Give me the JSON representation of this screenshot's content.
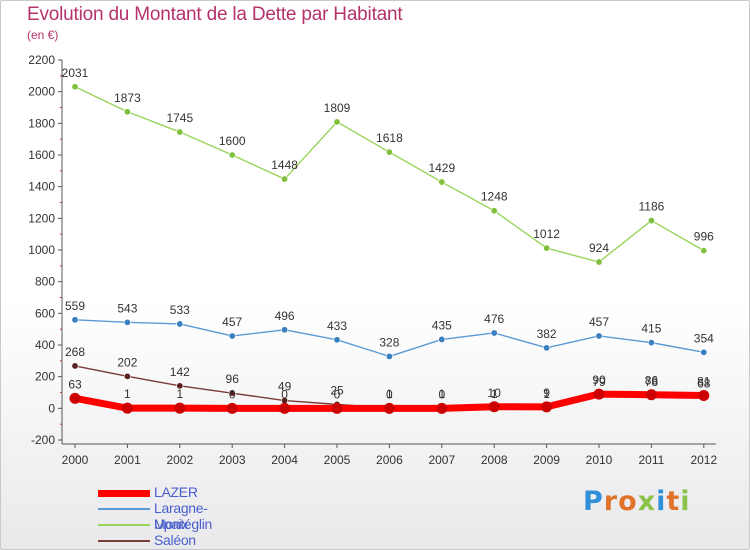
{
  "title": "Evolution du Montant de la Dette par Habitant",
  "subtitle": "(en €)",
  "brand": "Proxiti",
  "colors": {
    "title": "#b5326b",
    "axis": "#333333",
    "legend_text": "#4a5fcc",
    "lazer": "#ff0000",
    "laragne": "#5b9bd5",
    "upaix": "#99d45a",
    "saleon": "#7a3b3b"
  },
  "chart_data": {
    "type": "line",
    "title": "Evolution du Montant de la Dette par Habitant",
    "subtitle": "(en €)",
    "x": [
      "2000",
      "2001",
      "2002",
      "2003",
      "2004",
      "2005",
      "2006",
      "2007",
      "2008",
      "2009",
      "2010",
      "2011",
      "2012"
    ],
    "ylim": [
      -200,
      2200
    ],
    "yticks": [
      -200,
      0,
      200,
      400,
      600,
      800,
      1000,
      1200,
      1400,
      1600,
      1800,
      2000,
      2200
    ],
    "legend_position": "bottom-left",
    "grid": false,
    "series": [
      {
        "name": "LAZER",
        "key": "lazer",
        "color": "#ff0000",
        "marker": "#cc0000",
        "values": [
          63,
          1,
          1,
          0,
          0,
          0,
          0,
          0,
          10,
          9,
          90,
          86,
          81
        ],
        "labels": [
          "63",
          "1",
          "1",
          "0",
          "0",
          "0",
          "0",
          "0",
          "10",
          "9",
          "90",
          "86",
          "81"
        ]
      },
      {
        "name": "Laragne-Montéglin",
        "key": "laragne",
        "color": "#5b9bd5",
        "marker": "#3a7fc0",
        "values": [
          559,
          543,
          533,
          457,
          496,
          433,
          328,
          435,
          476,
          382,
          457,
          415,
          354
        ],
        "labels": [
          "559",
          "543",
          "533",
          "457",
          "496",
          "433",
          "328",
          "435",
          "476",
          "382",
          "457",
          "415",
          "354"
        ]
      },
      {
        "name": "Upaix",
        "key": "upaix",
        "color": "#99d45a",
        "marker": "#7fc13c",
        "values": [
          2031,
          1873,
          1745,
          1600,
          1448,
          1809,
          1618,
          1429,
          1248,
          1012,
          924,
          1186,
          996
        ],
        "labels": [
          "2031",
          "1873",
          "1745",
          "1600",
          "1448",
          "1809",
          "1618",
          "1429",
          "1248",
          "1012",
          "924",
          "1186",
          "996"
        ]
      },
      {
        "name": "Saléon",
        "key": "saleon",
        "color": "#7a3b3b",
        "marker": "#5a1f1f",
        "values": [
          268,
          202,
          142,
          96,
          49,
          25,
          1,
          1,
          1,
          1,
          79,
          78,
          68
        ],
        "labels": [
          "268",
          "202",
          "142",
          "96",
          "49",
          "25",
          "1",
          "1",
          "1",
          "1",
          "79",
          "78",
          "68"
        ]
      }
    ]
  }
}
